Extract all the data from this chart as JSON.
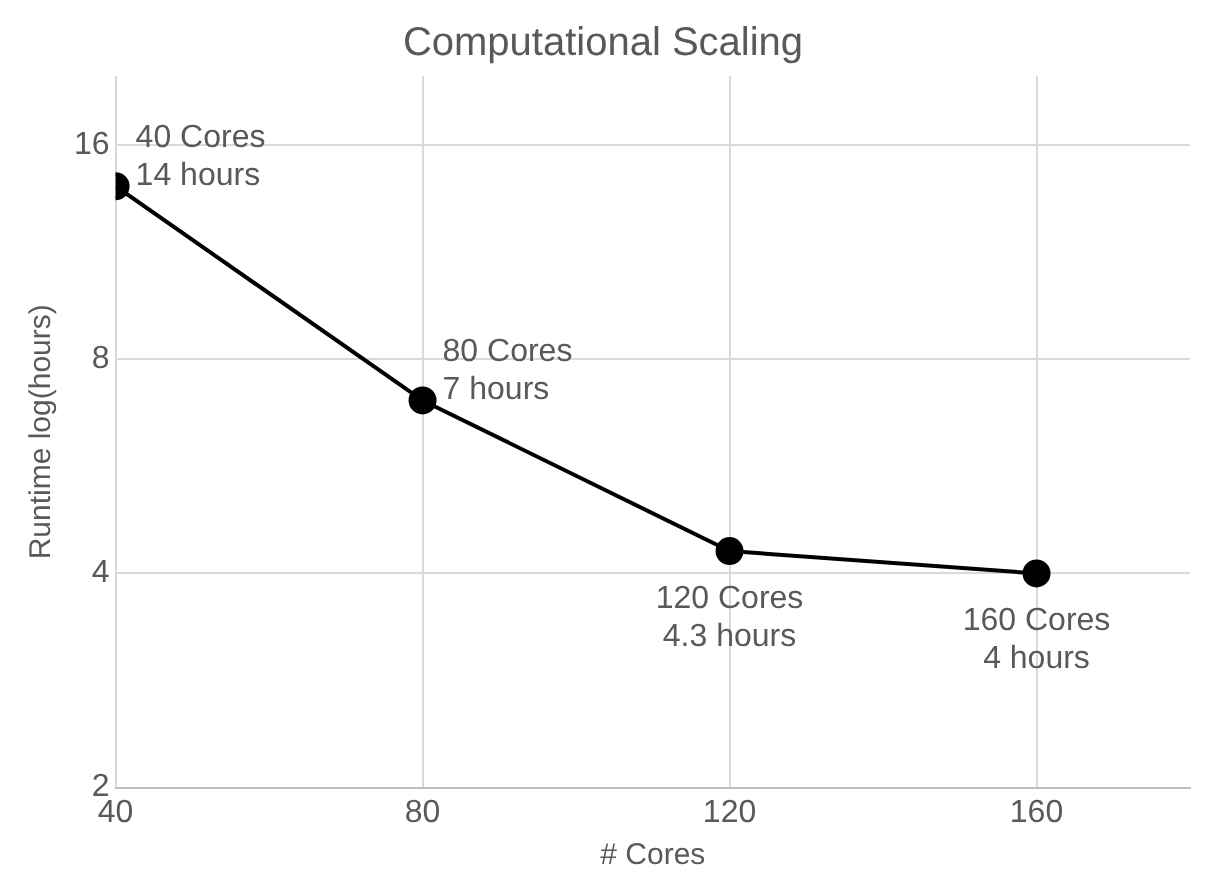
{
  "chart_data": {
    "type": "line",
    "title": "Computational Scaling",
    "xlabel": "# Cores",
    "ylabel": "Runtime log(hours)",
    "x": [
      40,
      80,
      120,
      160
    ],
    "series": [
      {
        "color": "#000000",
        "values": [
          14,
          7,
          4.3,
          4
        ]
      }
    ],
    "xlim": [
      40,
      180
    ],
    "xticks": [
      40,
      80,
      120,
      160
    ],
    "ylim": [
      2,
      20
    ],
    "yticks": [
      2,
      4,
      8,
      16
    ],
    "log": "y",
    "grid": true,
    "marker": "circle",
    "line_style": "solid",
    "annotations": [
      {
        "text": "40 Cores\n14 hours",
        "x": 40,
        "y": 14
      },
      {
        "text": "80 Cores\n7 hours",
        "x": 80,
        "y": 7
      },
      {
        "text": "120 Cores\n4.3 hours",
        "x": 120,
        "y": 4.3
      },
      {
        "text": "160 Cores\n4 hours",
        "x": 160,
        "y": 4
      }
    ]
  }
}
